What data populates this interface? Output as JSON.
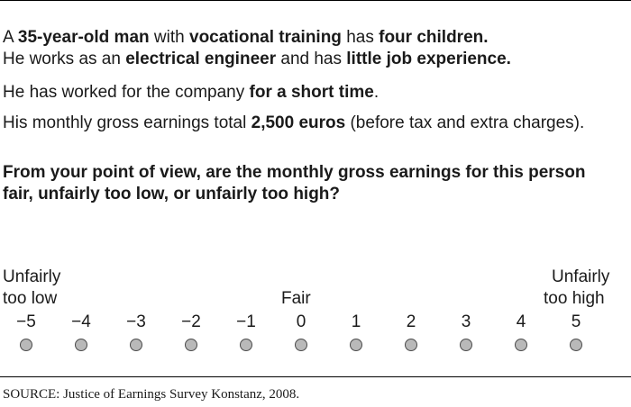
{
  "vignette": {
    "l1": {
      "a": "A ",
      "b": "35-year-old man",
      "c": " with ",
      "d": "vocational training",
      "e": " has ",
      "f": "four children."
    },
    "l2": {
      "a": "He works as an ",
      "b": "electrical engineer",
      "c": " and has ",
      "d": "little job experience."
    },
    "l3": {
      "a": "He has worked for the company ",
      "b": "for a short time",
      "c": "."
    },
    "l4": {
      "a": "His monthly gross earnings total ",
      "b": "2,500 euros",
      "c": " (before tax and extra charges)."
    }
  },
  "question": {
    "line1": "From your point of view, are the monthly gross earnings for this person",
    "line2": "fair, unfairly too low, or unfairly too high?"
  },
  "scale": {
    "left_anchor_line1": "Unfairly",
    "left_anchor_line2": "too low",
    "middle_anchor": "Fair",
    "right_anchor_line1": "Unfairly",
    "right_anchor_line2": "too high",
    "points": [
      "−5",
      "−4",
      "−3",
      "−2",
      "−1",
      "0",
      "1",
      "2",
      "3",
      "4",
      "5"
    ]
  },
  "source": "SOURCE: Justice of Earnings Survey Konstanz, 2008."
}
